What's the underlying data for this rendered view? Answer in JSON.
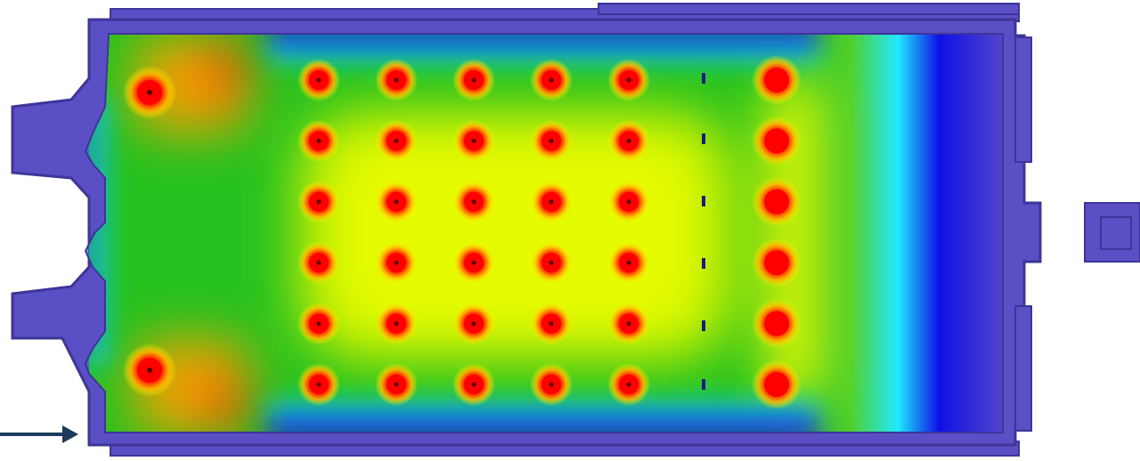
{
  "colors": {
    "background": "#ffffff",
    "housing": "#5a4fc4",
    "housing_edge": "#3d3598",
    "field_low": "#1a1ae0",
    "field_cyan": "#10e0ff",
    "field_green": "#1fbf1f",
    "field_yellow": "#ffff00",
    "field_red": "#ff0000",
    "source_center": "#5a0000",
    "arrow": "#1c3a5c"
  },
  "icons": {
    "arrow": "right-arrow-icon",
    "port": "square-port-icon"
  },
  "source_grid": {
    "rows": 6,
    "columns": 5,
    "extra_column": true
  }
}
